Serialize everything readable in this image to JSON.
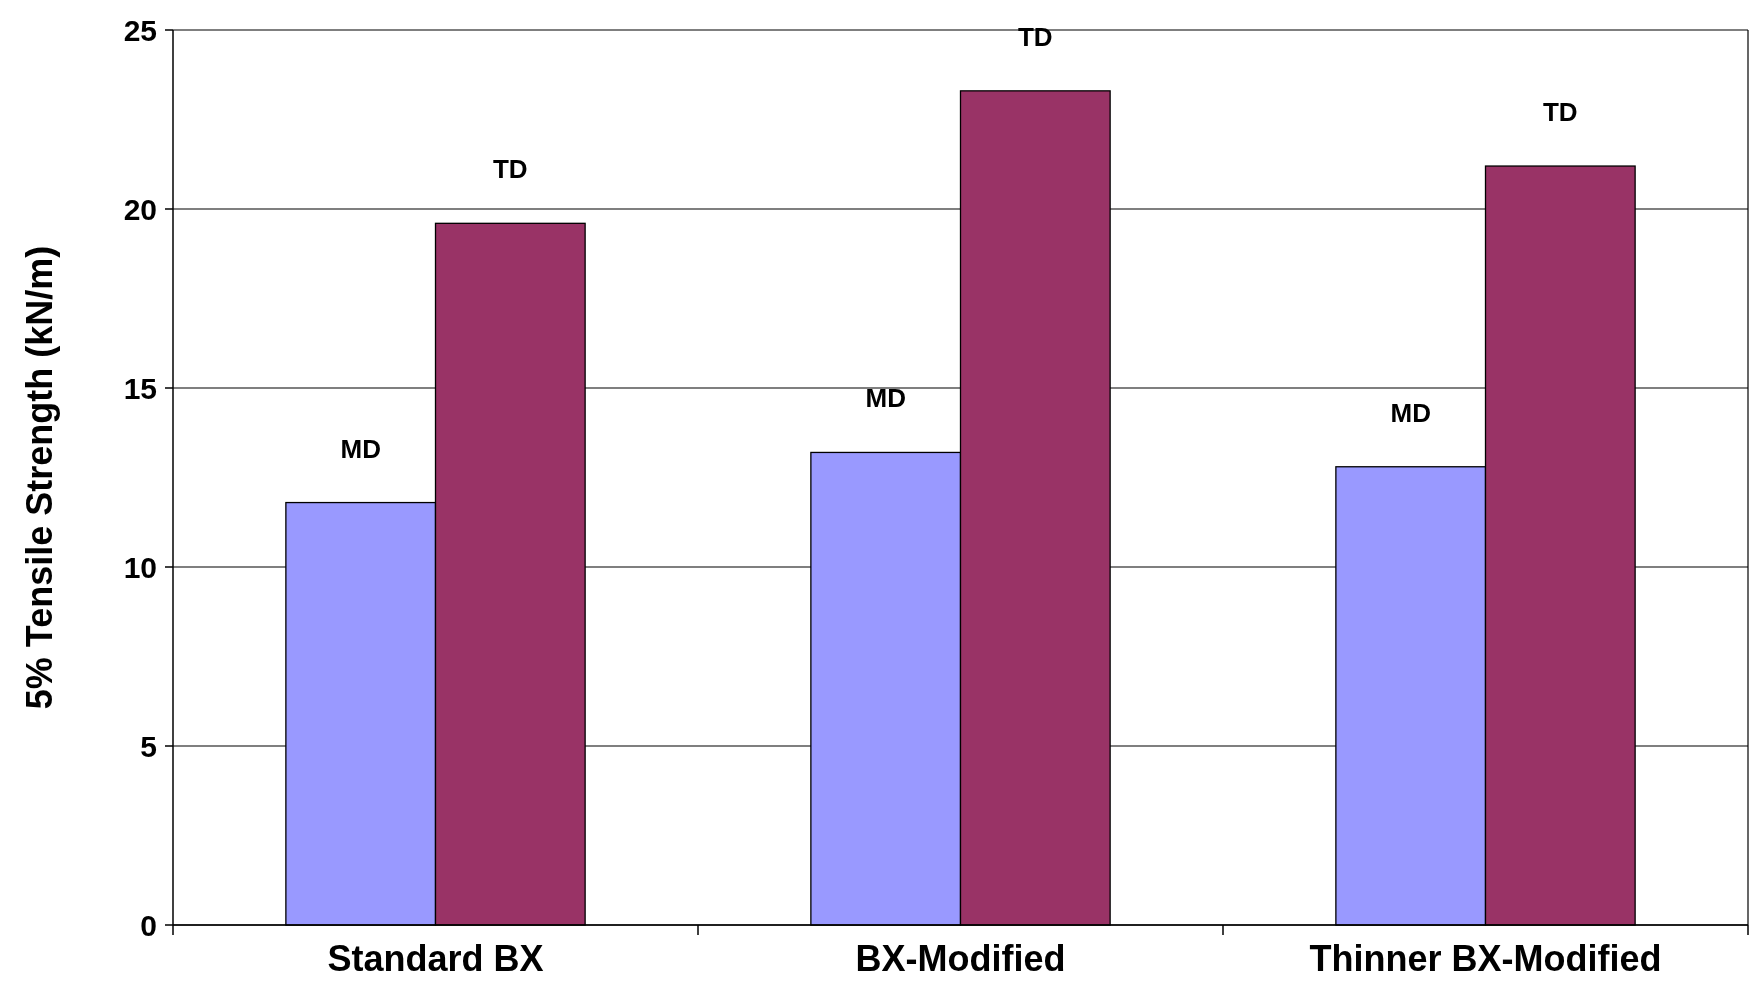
{
  "chart_data": {
    "type": "bar",
    "ylabel": "5% Tensile Strength (kN/m)",
    "categories": [
      "Standard BX",
      "BX-Modified",
      "Thinner BX-Modified"
    ],
    "series": [
      {
        "name": "MD",
        "color": "#9999ff",
        "values": [
          11.8,
          13.2,
          12.8
        ]
      },
      {
        "name": "TD",
        "color": "#993366",
        "values": [
          19.6,
          23.3,
          21.2
        ]
      }
    ],
    "ylim": [
      0,
      25
    ],
    "yticks": [
      0,
      5,
      10,
      15,
      20,
      25
    ],
    "grid": "y"
  }
}
